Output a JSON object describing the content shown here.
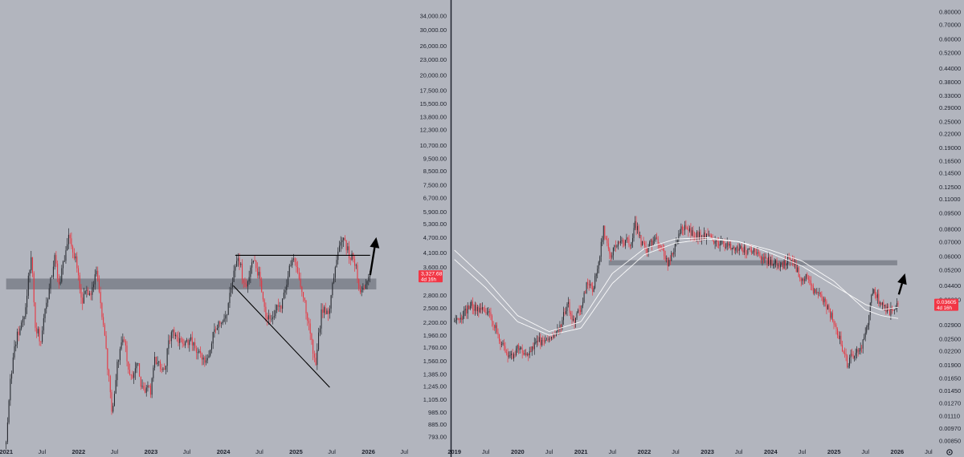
{
  "chart_data": [
    {
      "type": "candlestick",
      "panel": "left",
      "y_scale": "log",
      "ylim": [
        730,
        38000
      ],
      "y_ticks": [
        "34,000.00",
        "30,000.00",
        "26,000.00",
        "23,000.00",
        "20,000.00",
        "17,500.00",
        "15,500.00",
        "13,800.00",
        "12,300.00",
        "10,700.00",
        "9,500.00",
        "8,500.00",
        "7,500.00",
        "6,700.00",
        "5,900.00",
        "5,300.00",
        "4,700.00",
        "4,100.00",
        "3,600.00",
        "2,800.00",
        "2,500.00",
        "2,200.00",
        "1,960.00",
        "1,760.00",
        "1,560.00",
        "1,385.00",
        "1,245.00",
        "1,105.00",
        "985.00",
        "885.00",
        "793.00"
      ],
      "x_labels": [
        "2021",
        "Jul",
        "2022",
        "Jul",
        "2023",
        "Jul",
        "2024",
        "Jul",
        "2025",
        "Jul",
        "2026",
        "Jul"
      ],
      "bold_x_labels": [
        "2021",
        "2022",
        "2023",
        "2024",
        "2025",
        "2026"
      ],
      "xlim": [
        "2020-12-01",
        "2026-09-15"
      ],
      "price_label": {
        "value": 3327.68,
        "text": "3,327.68",
        "countdown": "4d 16h"
      },
      "anchors": [
        [
          "2021-01-01",
          740
        ],
        [
          "2021-01-20",
          1300
        ],
        [
          "2021-02-20",
          1900
        ],
        [
          "2021-04-01",
          2300
        ],
        [
          "2021-05-10",
          4200
        ],
        [
          "2021-05-25",
          2200
        ],
        [
          "2021-06-25",
          1850
        ],
        [
          "2021-08-10",
          3200
        ],
        [
          "2021-09-05",
          3900
        ],
        [
          "2021-09-25",
          3000
        ],
        [
          "2021-11-10",
          4800
        ],
        [
          "2021-12-20",
          3800
        ],
        [
          "2022-01-20",
          2500
        ],
        [
          "2022-02-10",
          3100
        ],
        [
          "2022-03-01",
          2650
        ],
        [
          "2022-04-01",
          3500
        ],
        [
          "2022-05-10",
          2000
        ],
        [
          "2022-06-18",
          1000
        ],
        [
          "2022-07-20",
          1600
        ],
        [
          "2022-08-15",
          1950
        ],
        [
          "2022-09-20",
          1300
        ],
        [
          "2022-10-30",
          1600
        ],
        [
          "2022-11-10",
          1200
        ],
        [
          "2022-12-31",
          1200
        ],
        [
          "2023-01-20",
          1600
        ],
        [
          "2023-03-10",
          1450
        ],
        [
          "2023-04-15",
          2100
        ],
        [
          "2023-06-15",
          1750
        ],
        [
          "2023-07-20",
          1900
        ],
        [
          "2023-08-20",
          1650
        ],
        [
          "2023-10-10",
          1550
        ],
        [
          "2023-11-15",
          2050
        ],
        [
          "2023-12-31",
          2300
        ],
        [
          "2024-01-20",
          2450
        ],
        [
          "2024-03-12",
          4050
        ],
        [
          "2024-04-20",
          3000
        ],
        [
          "2024-06-01",
          3800
        ],
        [
          "2024-06-25",
          3400
        ],
        [
          "2024-08-05",
          2300
        ],
        [
          "2024-09-15",
          2400
        ],
        [
          "2024-10-20",
          2600
        ],
        [
          "2024-12-10",
          3950
        ],
        [
          "2025-01-15",
          3300
        ],
        [
          "2025-02-20",
          2500
        ],
        [
          "2025-04-09",
          1450
        ],
        [
          "2025-05-10",
          2500
        ],
        [
          "2025-06-15",
          2450
        ],
        [
          "2025-07-20",
          3700
        ],
        [
          "2025-08-24",
          4850
        ],
        [
          "2025-09-25",
          4000
        ],
        [
          "2025-10-20",
          3900
        ],
        [
          "2025-11-10",
          3200
        ],
        [
          "2025-11-25",
          2800
        ],
        [
          "2025-12-15",
          3000
        ],
        [
          "2026-01-10",
          3327.68
        ]
      ],
      "annotations": {
        "zone": {
          "low": 2950,
          "high": 3250,
          "from": "2021-01-01",
          "to": "2026-02-10"
        },
        "range_top": {
          "price": 4000,
          "from": "2024-03-01",
          "to": "2026-01-10"
        },
        "support_line": [
          [
            "2024-02-20",
            3050
          ],
          [
            "2025-06-20",
            1230
          ]
        ],
        "arrow": [
          [
            "2026-01-10",
            3350
          ],
          [
            "2026-02-10",
            4700
          ]
        ]
      }
    },
    {
      "type": "candlestick",
      "panel": "right",
      "y_scale": "log",
      "ylim": [
        0.00806,
        0.905
      ],
      "y_ticks": [
        "0.80000",
        "0.70000",
        "0.60000",
        "0.52000",
        "0.44000",
        "0.38000",
        "0.33000",
        "0.29000",
        "0.25000",
        "0.22000",
        "0.19000",
        "0.16500",
        "0.14500",
        "0.12500",
        "0.11000",
        "0.09500",
        "0.08000",
        "0.07000",
        "0.06000",
        "0.05200",
        "0.04400",
        "0.03800",
        "0.02900",
        "0.02500",
        "0.02200",
        "0.01900",
        "0.01650",
        "0.01450",
        "0.01270",
        "0.01110",
        "0.00970",
        "0.00850"
      ],
      "x_labels": [
        "2019",
        "Jul",
        "2020",
        "Jul",
        "2021",
        "Jul",
        "2022",
        "Jul",
        "2023",
        "Jul",
        "2024",
        "Jul",
        "2025",
        "Jul",
        "2026",
        "Jul"
      ],
      "bold_x_labels": [
        "2019",
        "2020",
        "2021",
        "2022",
        "2023",
        "2024",
        "2025",
        "2026"
      ],
      "xlim": [
        "2018-12-15",
        "2026-07-20"
      ],
      "price_label": {
        "value": 0.03605,
        "text": "0.03605",
        "countdown": "4d 16h"
      },
      "anchors": [
        [
          "2019-01-01",
          0.03
        ],
        [
          "2019-02-15",
          0.032
        ],
        [
          "2019-04-01",
          0.036
        ],
        [
          "2019-05-15",
          0.034
        ],
        [
          "2019-06-20",
          0.034
        ],
        [
          "2019-08-01",
          0.032
        ],
        [
          "2019-09-15",
          0.025
        ],
        [
          "2019-11-15",
          0.02
        ],
        [
          "2020-01-01",
          0.023
        ],
        [
          "2020-02-20",
          0.021
        ],
        [
          "2020-03-20",
          0.022
        ],
        [
          "2020-04-20",
          0.025
        ],
        [
          "2020-06-01",
          0.024
        ],
        [
          "2020-07-15",
          0.025
        ],
        [
          "2020-09-01",
          0.028
        ],
        [
          "2020-10-15",
          0.037
        ],
        [
          "2020-11-15",
          0.03
        ],
        [
          "2020-12-31",
          0.034
        ],
        [
          "2021-02-01",
          0.044
        ],
        [
          "2021-03-10",
          0.042
        ],
        [
          "2021-04-05",
          0.052
        ],
        [
          "2021-05-10",
          0.08
        ],
        [
          "2021-06-20",
          0.06
        ],
        [
          "2021-08-01",
          0.07
        ],
        [
          "2021-09-15",
          0.07
        ],
        [
          "2021-10-15",
          0.07
        ],
        [
          "2021-11-10",
          0.085
        ],
        [
          "2021-12-15",
          0.07
        ],
        [
          "2022-01-20",
          0.065
        ],
        [
          "2022-03-01",
          0.072
        ],
        [
          "2022-04-15",
          0.066
        ],
        [
          "2022-05-15",
          0.055
        ],
        [
          "2022-06-15",
          0.062
        ],
        [
          "2022-08-01",
          0.08
        ],
        [
          "2022-09-01",
          0.08
        ],
        [
          "2022-11-01",
          0.075
        ],
        [
          "2022-12-31",
          0.074
        ],
        [
          "2023-02-15",
          0.071
        ],
        [
          "2023-04-01",
          0.068
        ],
        [
          "2023-06-01",
          0.065
        ],
        [
          "2023-08-01",
          0.064
        ],
        [
          "2023-10-01",
          0.063
        ],
        [
          "2023-12-01",
          0.058
        ],
        [
          "2024-01-20",
          0.056
        ],
        [
          "2024-03-01",
          0.054
        ],
        [
          "2024-04-10",
          0.058
        ],
        [
          "2024-05-20",
          0.055
        ],
        [
          "2024-06-20",
          0.048
        ],
        [
          "2024-08-01",
          0.048
        ],
        [
          "2024-09-01",
          0.042
        ],
        [
          "2024-10-15",
          0.04
        ],
        [
          "2024-11-20",
          0.035
        ],
        [
          "2025-01-01",
          0.03
        ],
        [
          "2025-02-10",
          0.024
        ],
        [
          "2025-03-20",
          0.019
        ],
        [
          "2025-04-15",
          0.021
        ],
        [
          "2025-05-20",
          0.022
        ],
        [
          "2025-06-20",
          0.024
        ],
        [
          "2025-07-15",
          0.029
        ],
        [
          "2025-08-10",
          0.042
        ],
        [
          "2025-09-15",
          0.038
        ],
        [
          "2025-10-15",
          0.036
        ],
        [
          "2025-11-15",
          0.033
        ],
        [
          "2025-12-15",
          0.035
        ],
        [
          "2026-01-10",
          0.03605
        ]
      ],
      "moving_averages": [
        {
          "points": [
            [
              "2019-01-01",
              0.064
            ],
            [
              "2019-07-01",
              0.047
            ],
            [
              "2020-01-01",
              0.032
            ],
            [
              "2020-07-01",
              0.027
            ],
            [
              "2021-01-01",
              0.03
            ],
            [
              "2021-07-01",
              0.05
            ],
            [
              "2022-01-01",
              0.065
            ],
            [
              "2022-07-01",
              0.072
            ],
            [
              "2023-01-01",
              0.073
            ],
            [
              "2023-07-01",
              0.07
            ],
            [
              "2024-01-01",
              0.062
            ],
            [
              "2024-07-01",
              0.054
            ],
            [
              "2025-01-01",
              0.044
            ],
            [
              "2025-07-01",
              0.036
            ],
            [
              "2025-10-01",
              0.034
            ],
            [
              "2026-01-10",
              0.035
            ]
          ]
        },
        {
          "points": [
            [
              "2019-01-01",
              0.058
            ],
            [
              "2019-07-01",
              0.043
            ],
            [
              "2020-01-01",
              0.03
            ],
            [
              "2020-07-01",
              0.026
            ],
            [
              "2021-01-01",
              0.028
            ],
            [
              "2021-07-01",
              0.045
            ],
            [
              "2022-01-01",
              0.061
            ],
            [
              "2022-07-01",
              0.069
            ],
            [
              "2023-01-01",
              0.072
            ],
            [
              "2023-07-01",
              0.07
            ],
            [
              "2024-01-01",
              0.064
            ],
            [
              "2024-07-01",
              0.057
            ],
            [
              "2025-01-01",
              0.046
            ],
            [
              "2025-07-01",
              0.034
            ],
            [
              "2025-10-01",
              0.032
            ],
            [
              "2026-01-10",
              0.031
            ]
          ]
        }
      ],
      "annotations": {
        "zone": {
          "low": 0.0545,
          "high": 0.0575,
          "from": "2021-06-10",
          "to": "2026-01-01"
        },
        "arrow": [
          [
            "2026-01-10",
            0.04
          ],
          [
            "2026-02-15",
            0.05
          ]
        ]
      }
    }
  ]
}
